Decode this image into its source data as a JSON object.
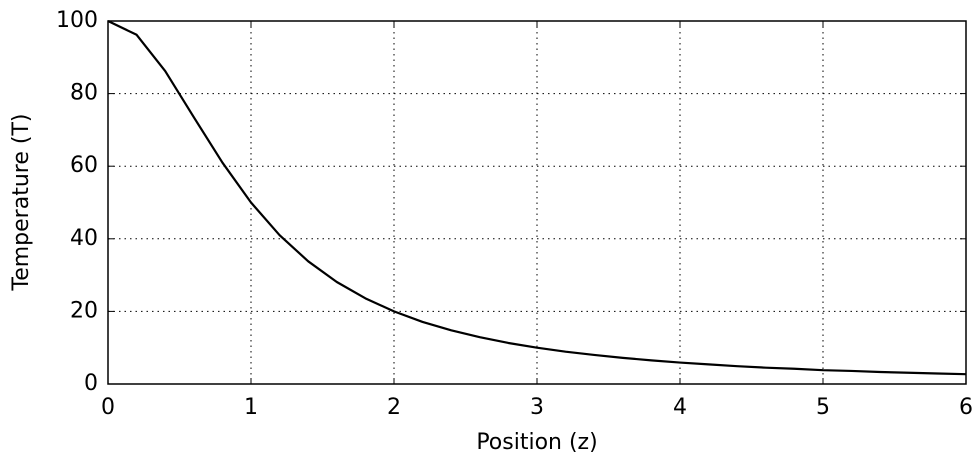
{
  "chart_data": {
    "type": "line",
    "x_label": "Position (z)",
    "y_label": "Temperature (T)",
    "x": [
      0,
      0.2,
      0.4,
      0.6,
      0.8,
      1.0,
      1.2,
      1.4,
      1.6,
      1.8,
      2.0,
      2.2,
      2.4,
      2.6,
      2.8,
      3.0,
      3.2,
      3.4,
      3.6,
      3.8,
      4.0,
      4.2,
      4.4,
      4.6,
      4.8,
      5.0,
      5.2,
      5.4,
      5.6,
      5.8,
      6.0
    ],
    "values": [
      100,
      96.2,
      86.2,
      73.5,
      61.0,
      50.0,
      41.0,
      33.8,
      28.1,
      23.6,
      20.0,
      17.1,
      14.8,
      12.9,
      11.3,
      10.0,
      8.9,
      8.0,
      7.2,
      6.5,
      5.9,
      5.4,
      4.9,
      4.5,
      4.2,
      3.8,
      3.6,
      3.3,
      3.1,
      2.9,
      2.7
    ],
    "color": "#000000",
    "xlim": [
      0,
      6
    ],
    "xticks": [
      0,
      1,
      2,
      3,
      4,
      5,
      6
    ],
    "ylim": [
      0,
      100
    ],
    "yticks": [
      0,
      20,
      40,
      60,
      80,
      100
    ],
    "grid": true
  }
}
